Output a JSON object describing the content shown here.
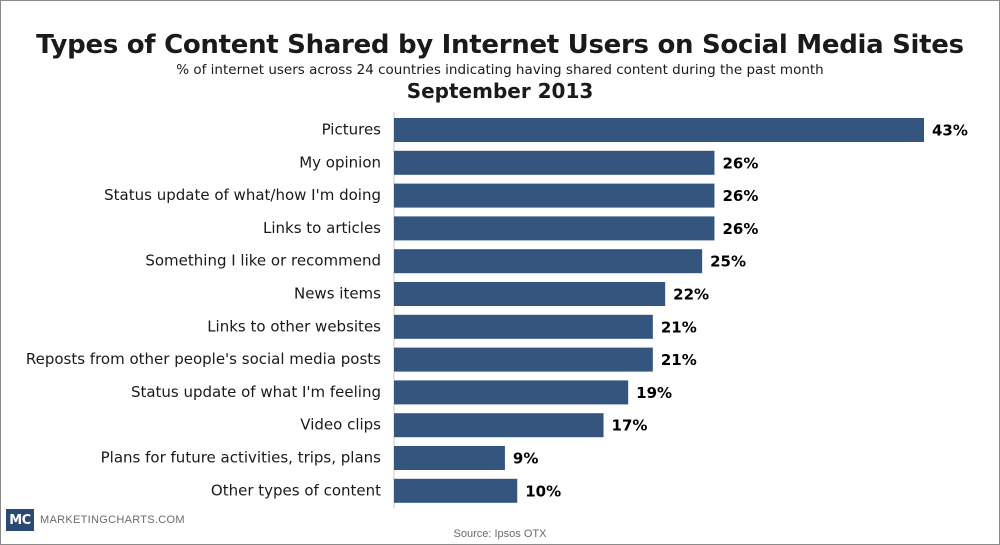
{
  "header": {
    "title": "Types of Content Shared by Internet Users on Social Media Sites",
    "subtitle": "% of internet users across 24 countries indicating having shared content during the past month",
    "period": "September 2013"
  },
  "footer": {
    "logo_text": "MC",
    "brand": "MARKETINGCHARTS.COM",
    "source": "Source: Ipsos OTX"
  },
  "colors": {
    "bar": "#34557e",
    "text": "#1a1a1a"
  },
  "chart_data": {
    "type": "bar",
    "orientation": "horizontal",
    "title": "Types of Content Shared by Internet Users on Social Media Sites",
    "subtitle": "% of internet users across 24 countries indicating having shared content during the past month",
    "xlabel": "",
    "ylabel": "",
    "unit": "%",
    "xlim": [
      0,
      43
    ],
    "grid": false,
    "categories": [
      "Pictures",
      "My opinion",
      "Status update of what/how I'm doing",
      "Links to articles",
      "Something I like or recommend",
      "News items",
      "Links to other websites",
      "Reposts from other people's social media posts",
      "Status update of what I'm feeling",
      "Video clips",
      "Plans for future activities, trips, plans",
      "Other types of content"
    ],
    "values": [
      43,
      26,
      26,
      26,
      25,
      22,
      21,
      21,
      19,
      17,
      9,
      10
    ],
    "labels": [
      "43%",
      "26%",
      "26%",
      "26%",
      "25%",
      "22%",
      "21%",
      "21%",
      "19%",
      "17%",
      "9%",
      "10%"
    ]
  }
}
